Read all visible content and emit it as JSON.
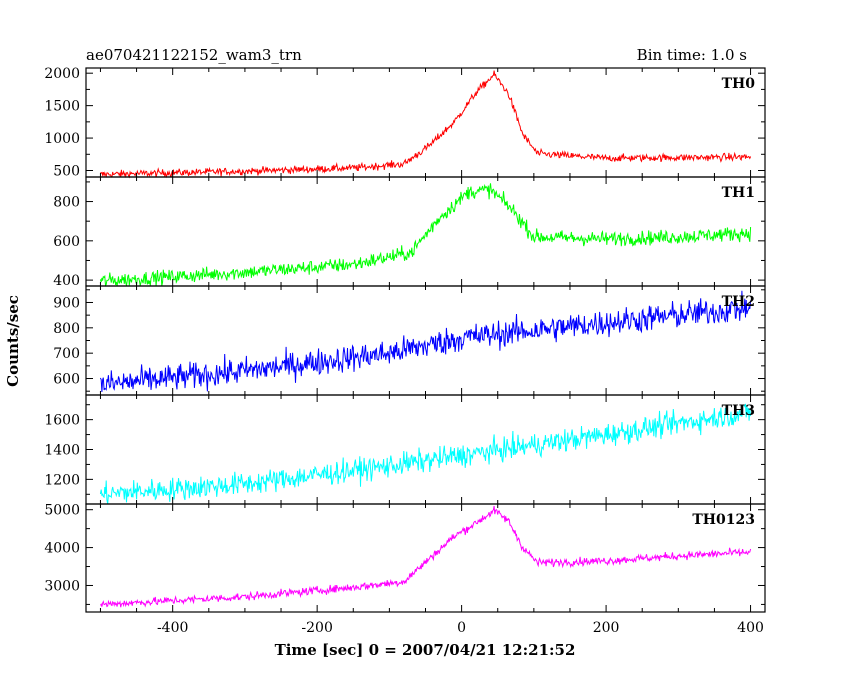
{
  "header": {
    "title": "ae070421122152_wam3_trn",
    "bin_time": "Bin time: 1.0 s"
  },
  "chart_data": {
    "type": "line",
    "xlabel": "Time [sec] 0 = 2007/04/21 12:21:52",
    "ylabel": "Counts/sec",
    "xlim": [
      -520,
      420
    ],
    "xticks": [
      -400,
      -200,
      0,
      200,
      400
    ],
    "bin_time_s": 1.0,
    "panels": [
      {
        "name": "TH0",
        "color": "#ff0000",
        "ylim": [
          400,
          2080
        ],
        "yticks": [
          500,
          1000,
          1500,
          2000
        ],
        "noise": 40,
        "shape": [
          [
            -500,
            440
          ],
          [
            -300,
            490
          ],
          [
            -150,
            540
          ],
          [
            -80,
            600
          ],
          [
            -45,
            880
          ],
          [
            -10,
            1250
          ],
          [
            20,
            1700
          ],
          [
            45,
            1980
          ],
          [
            65,
            1680
          ],
          [
            85,
            1050
          ],
          [
            105,
            760
          ],
          [
            200,
            690
          ],
          [
            300,
            700
          ],
          [
            400,
            710
          ]
        ]
      },
      {
        "name": "TH1",
        "color": "#00ff00",
        "ylim": [
          370,
          925
        ],
        "yticks": [
          400,
          600,
          800
        ],
        "noise": 26,
        "shape": [
          [
            -500,
            395
          ],
          [
            -300,
            440
          ],
          [
            -150,
            480
          ],
          [
            -70,
            540
          ],
          [
            -30,
            720
          ],
          [
            10,
            850
          ],
          [
            40,
            860
          ],
          [
            70,
            760
          ],
          [
            100,
            620
          ],
          [
            200,
            610
          ],
          [
            300,
            620
          ],
          [
            400,
            640
          ]
        ]
      },
      {
        "name": "TH2",
        "color": "#0000ff",
        "ylim": [
          535,
          965
        ],
        "yticks": [
          600,
          700,
          800,
          900
        ],
        "noise": 38,
        "shape": [
          [
            -500,
            575
          ],
          [
            -300,
            630
          ],
          [
            -100,
            700
          ],
          [
            0,
            760
          ],
          [
            200,
            820
          ],
          [
            400,
            880
          ]
        ]
      },
      {
        "name": "TH3",
        "color": "#00ffff",
        "ylim": [
          1035,
          1765
        ],
        "yticks": [
          1200,
          1400,
          1600
        ],
        "noise": 55,
        "shape": [
          [
            -500,
            1100
          ],
          [
            -300,
            1170
          ],
          [
            -100,
            1290
          ],
          [
            0,
            1360
          ],
          [
            200,
            1500
          ],
          [
            400,
            1650
          ]
        ]
      },
      {
        "name": "TH0123",
        "color": "#ff00ff",
        "ylim": [
          2300,
          5150
        ],
        "yticks": [
          3000,
          4000,
          5000
        ],
        "noise": 75,
        "shape": [
          [
            -500,
            2500
          ],
          [
            -300,
            2700
          ],
          [
            -150,
            2950
          ],
          [
            -80,
            3100
          ],
          [
            -45,
            3700
          ],
          [
            -10,
            4300
          ],
          [
            20,
            4650
          ],
          [
            45,
            4980
          ],
          [
            65,
            4700
          ],
          [
            85,
            4000
          ],
          [
            105,
            3600
          ],
          [
            200,
            3650
          ],
          [
            300,
            3780
          ],
          [
            400,
            3880
          ]
        ]
      }
    ]
  }
}
